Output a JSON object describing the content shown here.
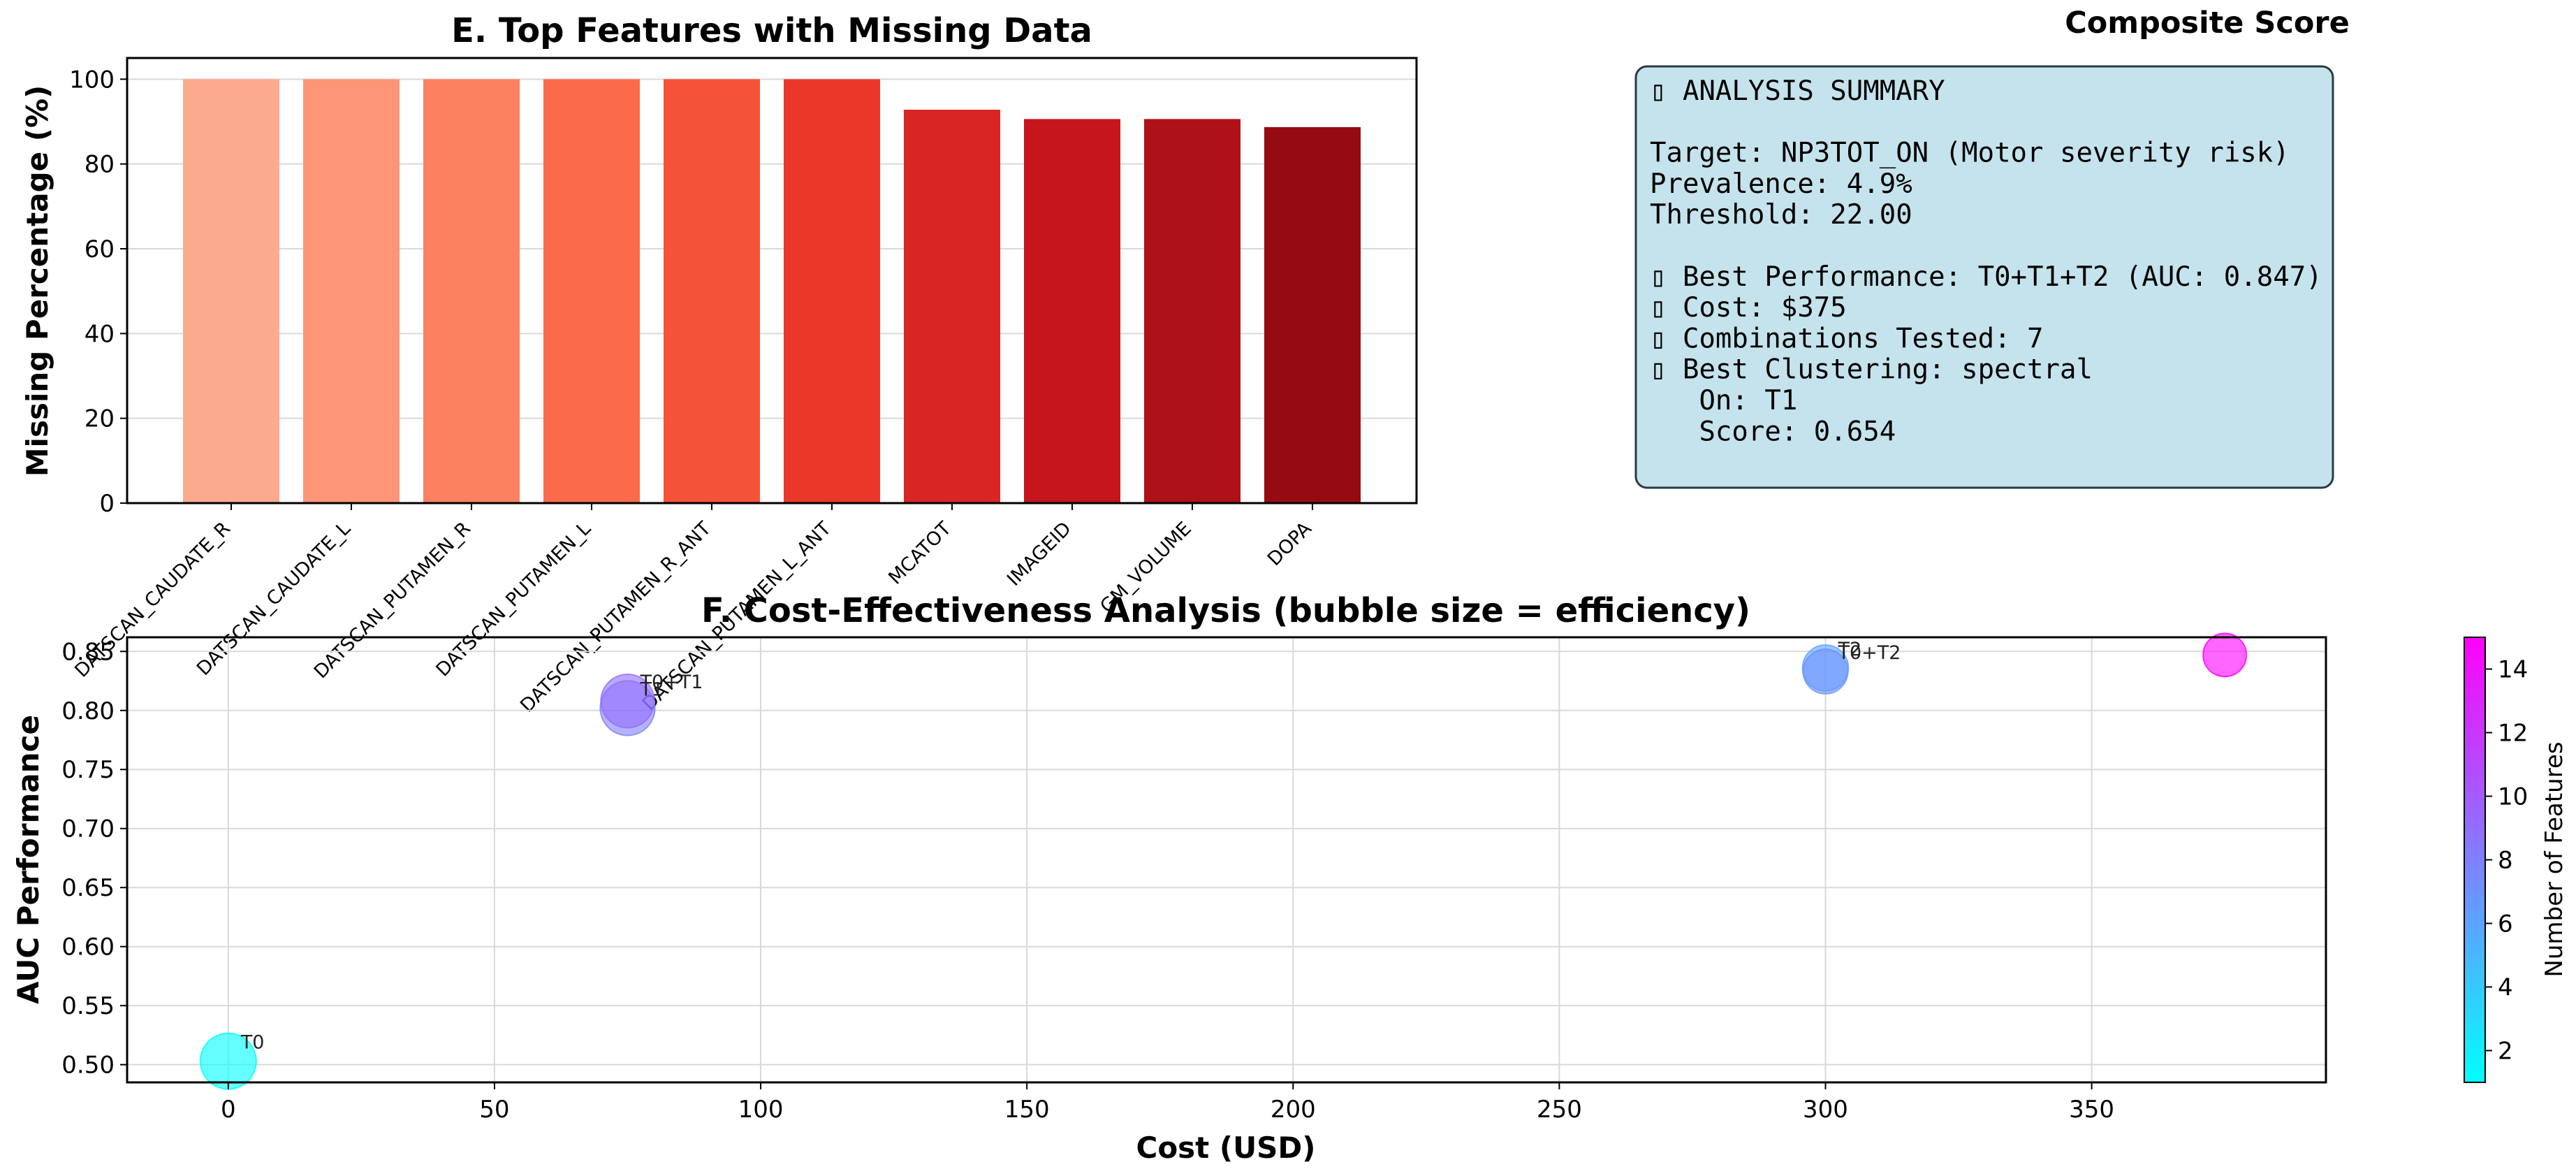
{
  "chart_data": [
    {
      "type": "bar",
      "title": "E. Top Features with Missing Data",
      "ylabel": "Missing Percentage (%)",
      "xlabel": "",
      "ylim": [
        0,
        105
      ],
      "yticks": [
        0,
        20,
        40,
        60,
        80,
        100
      ],
      "grid": true,
      "categories": [
        "DATSCAN_CAUDATE_R",
        "DATSCAN_CAUDATE_L",
        "DATSCAN_PUTAMEN_R",
        "DATSCAN_PUTAMEN_L",
        "DATSCAN_PUTAMEN_R_ANT",
        "DATSCAN_PUTAMEN_L_ANT",
        "MCATOT",
        "IMAGEID",
        "GM_VOLUME",
        "DOPA"
      ],
      "values": [
        100,
        100,
        100,
        100,
        100,
        100,
        92.8,
        90.6,
        90.6,
        88.7
      ],
      "colors": [
        "#fcaa8e",
        "#fc9677",
        "#fc8161",
        "#fb6a4a",
        "#f5523a",
        "#eb372a",
        "#d92624",
        "#c4161c",
        "#ae1117",
        "#960b13"
      ]
    },
    {
      "type": "scatter",
      "title": "F. Cost-Effectiveness Analysis (bubble size = efficiency)",
      "xlabel": "Cost (USD)",
      "ylabel": "AUC Performance",
      "xlim": [
        -19,
        394
      ],
      "ylim": [
        0.485,
        0.862
      ],
      "xticks": [
        0,
        50,
        100,
        150,
        200,
        250,
        300,
        350
      ],
      "yticks": [
        0.5,
        0.55,
        0.6,
        0.65,
        0.7,
        0.75,
        0.8,
        0.85
      ],
      "grid": true,
      "points": [
        {
          "label": "T0",
          "x": 0,
          "y": 0.503,
          "size": 1.0,
          "features": 1
        },
        {
          "label": "T1",
          "x": 75,
          "y": 0.802,
          "size": 0.95,
          "features": 8
        },
        {
          "label": "T0+T1",
          "x": 75,
          "y": 0.808,
          "size": 0.9,
          "features": 9
        },
        {
          "label": "T2",
          "x": 300,
          "y": 0.836,
          "size": 0.6,
          "features": 6
        },
        {
          "label": "T0+T2",
          "x": 300,
          "y": 0.833,
          "size": 0.55,
          "features": 7
        },
        {
          "label": "",
          "x": 375,
          "y": 0.847,
          "size": 0.5,
          "features": 15
        }
      ],
      "colorbar": {
        "label": "Number of Features",
        "min": 1,
        "max": 15,
        "ticks": [
          2,
          4,
          6,
          8,
          10,
          12,
          14
        ],
        "colormap": "cool",
        "color_low": "#00ffff",
        "color_high": "#ff00ff"
      }
    }
  ],
  "composite_heading": "Composite Score",
  "summary": {
    "lines": [
      "▯ ANALYSIS SUMMARY",
      "",
      "Target: NP3TOT_ON (Motor severity risk)",
      "Prevalence: 4.9%",
      "Threshold: 22.00",
      "",
      "▯ Best Performance: T0+T1+T2 (AUC: 0.847)",
      "▯ Cost: $375",
      "▯ Combinations Tested: 7",
      "▯ Best Clustering: spectral",
      "   On: T1",
      "   Score: 0.654"
    ],
    "background": "#c5e3ec",
    "border": "#2b3a40"
  }
}
